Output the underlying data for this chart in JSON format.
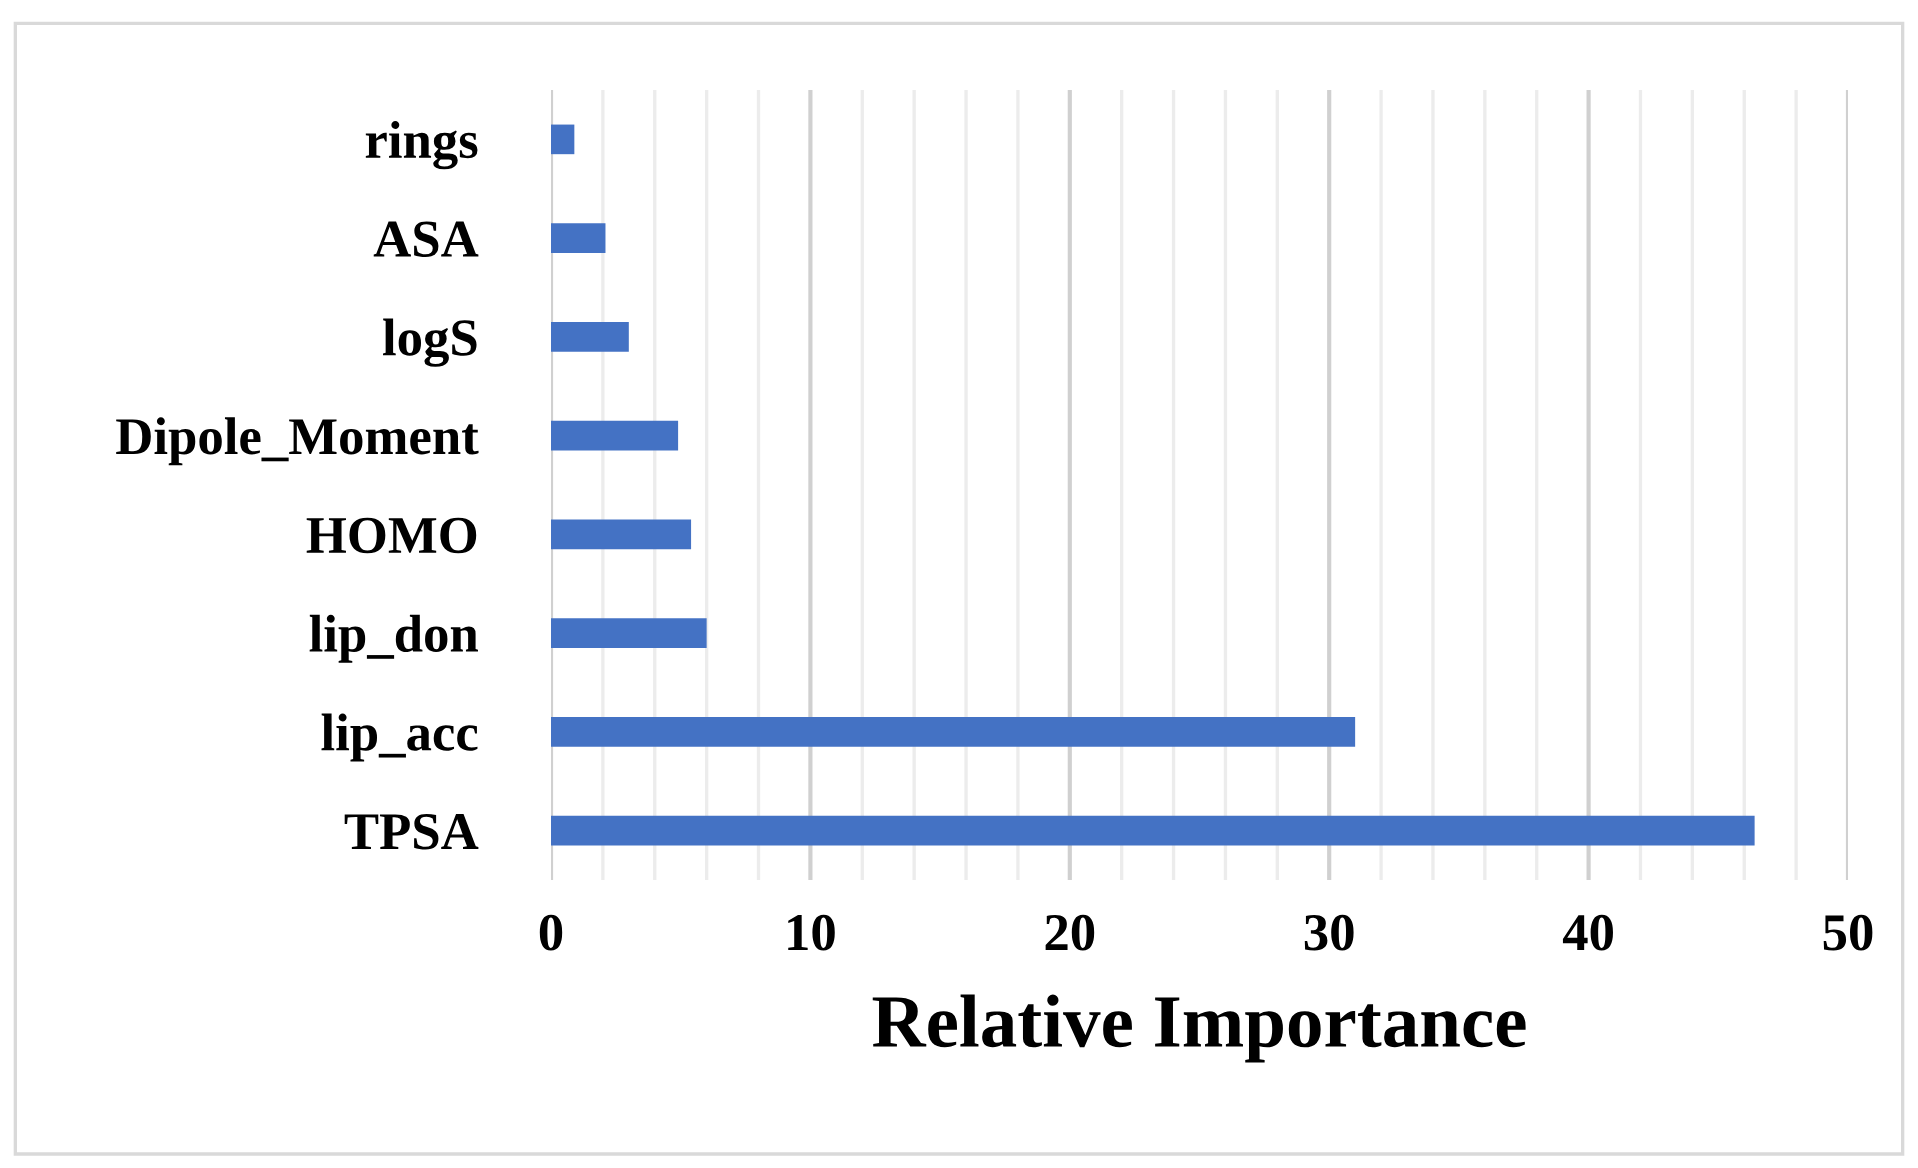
{
  "chart_data": {
    "type": "bar",
    "orientation": "horizontal",
    "xlabel": "Relative Importance",
    "categories": [
      "rings",
      "ASA",
      "logS",
      "Dipole_Moment",
      "HOMO",
      "lip_don",
      "lip_acc",
      "TPSA"
    ],
    "values": [
      0.9,
      2.1,
      3.0,
      4.9,
      5.4,
      6.0,
      31.0,
      46.4
    ],
    "color": "#4472c4",
    "xlim": [
      0,
      50
    ],
    "xticks": [
      0,
      {
        "value": 2,
        "label": null
      },
      {
        "value": 4,
        "label": null
      },
      {
        "value": 6,
        "label": null
      },
      {
        "value": 8,
        "label": null
      },
      10,
      {
        "value": 12,
        "label": null
      },
      {
        "value": 14,
        "label": null
      },
      {
        "value": 16,
        "label": null
      },
      {
        "value": 18,
        "label": null
      },
      20,
      {
        "value": 22,
        "label": null
      },
      {
        "value": 24,
        "label": null
      },
      {
        "value": 26,
        "label": null
      },
      {
        "value": 28,
        "label": null
      },
      30,
      {
        "value": 32,
        "label": null
      },
      {
        "value": 34,
        "label": null
      },
      {
        "value": 36,
        "label": null
      },
      {
        "value": 38,
        "label": null
      },
      40,
      {
        "value": 42,
        "label": null
      },
      {
        "value": 44,
        "label": null
      },
      {
        "value": 46,
        "label": null
      },
      {
        "value": 48,
        "label": null
      },
      50
    ],
    "grid": "x"
  }
}
